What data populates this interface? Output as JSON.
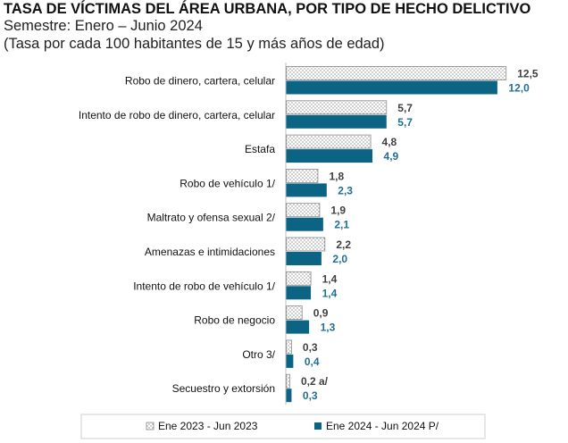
{
  "chart_data": {
    "type": "bar",
    "orientation": "horizontal",
    "title": "TASA DE VÍCTIMAS DEL ÁREA URBANA, POR TIPO DE HECHO DELICTIVO",
    "subtitle_lines": [
      "Semestre: Enero – Junio 2024",
      "(Tasa por cada 100 habitantes de 15 y más años de edad)"
    ],
    "categories": [
      "Robo de dinero, cartera, celular",
      "Intento de robo de dinero, cartera, celular",
      "Estafa",
      "Robo  de vehículo 1/",
      "Maltrato y ofensa sexual 2/",
      "Amenazas e intimidaciones",
      "Intento de robo de vehículo 1/",
      "Robo de negocio",
      "Otro 3/",
      "Secuestro y extorsión"
    ],
    "series": [
      {
        "name": "Ene 2023 - Jun 2023",
        "values": [
          12.5,
          5.7,
          4.8,
          1.8,
          1.9,
          2.2,
          1.4,
          0.9,
          0.3,
          0.2
        ],
        "labels": [
          "12,5",
          "5,7",
          "4,8",
          "1,8",
          "1,9",
          "2,2",
          "1,4",
          "0,9",
          "0,3",
          "0,2 a/"
        ],
        "fill": "dotted",
        "color": "#7a7a7a",
        "label_color": "#404040"
      },
      {
        "name": "Ene 2024 - Jun 2024 P/",
        "values": [
          12.0,
          5.7,
          4.9,
          2.3,
          2.1,
          2.0,
          1.4,
          1.3,
          0.4,
          0.3
        ],
        "labels": [
          "12,0",
          "5,7",
          "4,9",
          "2,3",
          "2,1",
          "2,0",
          "1,4",
          "1,3",
          "0,4",
          "0,3"
        ],
        "fill": "solid",
        "color": "#0b6484",
        "label_color": "#1f6f94"
      }
    ],
    "legend_position": "bottom",
    "grid": false
  }
}
